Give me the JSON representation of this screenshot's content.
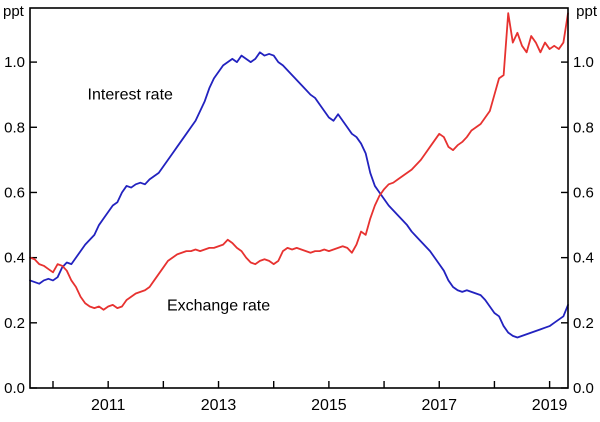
{
  "chart_data": {
    "type": "line",
    "title": "",
    "unit_label_left": "ppt",
    "unit_label_right": "ppt",
    "grid": false,
    "frame": true,
    "axis_color": "#000000",
    "background": "#ffffff",
    "x_range": [
      2009.5833,
      2019.3333
    ],
    "y_range": [
      0,
      1.166
    ],
    "x_start": 2009.5833,
    "x_step": 0.0833333,
    "y_ticks": [
      {
        "value": 0.0,
        "label": "0.0"
      },
      {
        "value": 0.2,
        "label": "0.2"
      },
      {
        "value": 0.4,
        "label": "0.4"
      },
      {
        "value": 0.6,
        "label": "0.6"
      },
      {
        "value": 0.8,
        "label": "0.8"
      },
      {
        "value": 1.0,
        "label": "1.0"
      }
    ],
    "x_minor_ticks": [
      2010,
      2011,
      2012,
      2013,
      2014,
      2015,
      2016,
      2017,
      2018,
      2019
    ],
    "x_tick_labels": [
      {
        "value": 2011,
        "label": "2011"
      },
      {
        "value": 2013,
        "label": "2013"
      },
      {
        "value": 2015,
        "label": "2015"
      },
      {
        "value": 2017,
        "label": "2017"
      },
      {
        "value": 2019,
        "label": "2019"
      }
    ],
    "series": [
      {
        "name": "Interest rate",
        "color": "#2222bf",
        "values": [
          0.33,
          0.325,
          0.32,
          0.33,
          0.335,
          0.33,
          0.34,
          0.37,
          0.385,
          0.38,
          0.4,
          0.42,
          0.44,
          0.455,
          0.47,
          0.5,
          0.52,
          0.54,
          0.56,
          0.57,
          0.6,
          0.62,
          0.615,
          0.625,
          0.63,
          0.625,
          0.64,
          0.65,
          0.66,
          0.68,
          0.7,
          0.72,
          0.74,
          0.76,
          0.78,
          0.8,
          0.82,
          0.85,
          0.88,
          0.92,
          0.95,
          0.97,
          0.99,
          1.0,
          1.01,
          1.0,
          1.02,
          1.01,
          1.0,
          1.01,
          1.03,
          1.02,
          1.025,
          1.02,
          1.0,
          0.99,
          0.975,
          0.96,
          0.945,
          0.93,
          0.915,
          0.9,
          0.89,
          0.87,
          0.85,
          0.83,
          0.82,
          0.84,
          0.82,
          0.8,
          0.78,
          0.77,
          0.75,
          0.72,
          0.66,
          0.62,
          0.6,
          0.58,
          0.56,
          0.545,
          0.53,
          0.515,
          0.5,
          0.48,
          0.465,
          0.45,
          0.435,
          0.42,
          0.4,
          0.38,
          0.36,
          0.33,
          0.31,
          0.3,
          0.295,
          0.3,
          0.295,
          0.29,
          0.285,
          0.27,
          0.25,
          0.23,
          0.22,
          0.19,
          0.17,
          0.16,
          0.155,
          0.16,
          0.165,
          0.17,
          0.175,
          0.18,
          0.185,
          0.19,
          0.2,
          0.21,
          0.22,
          0.255
        ]
      },
      {
        "name": "Exchange rate",
        "color": "#e73230",
        "values": [
          0.4,
          0.395,
          0.38,
          0.375,
          0.365,
          0.355,
          0.38,
          0.375,
          0.36,
          0.33,
          0.31,
          0.28,
          0.26,
          0.25,
          0.245,
          0.25,
          0.24,
          0.25,
          0.255,
          0.245,
          0.25,
          0.27,
          0.28,
          0.29,
          0.295,
          0.3,
          0.31,
          0.33,
          0.35,
          0.37,
          0.39,
          0.4,
          0.41,
          0.415,
          0.42,
          0.42,
          0.425,
          0.42,
          0.425,
          0.43,
          0.43,
          0.435,
          0.44,
          0.455,
          0.445,
          0.43,
          0.42,
          0.4,
          0.385,
          0.38,
          0.39,
          0.395,
          0.39,
          0.38,
          0.39,
          0.42,
          0.43,
          0.425,
          0.43,
          0.425,
          0.42,
          0.415,
          0.42,
          0.42,
          0.425,
          0.42,
          0.425,
          0.43,
          0.435,
          0.43,
          0.415,
          0.44,
          0.48,
          0.47,
          0.52,
          0.56,
          0.59,
          0.61,
          0.625,
          0.63,
          0.64,
          0.65,
          0.66,
          0.67,
          0.685,
          0.7,
          0.72,
          0.74,
          0.76,
          0.78,
          0.77,
          0.74,
          0.73,
          0.745,
          0.755,
          0.77,
          0.79,
          0.8,
          0.81,
          0.83,
          0.85,
          0.9,
          0.95,
          0.96,
          1.15,
          1.06,
          1.09,
          1.05,
          1.03,
          1.08,
          1.06,
          1.03,
          1.06,
          1.04,
          1.05,
          1.04,
          1.06,
          1.15
        ]
      }
    ],
    "annotations": [
      {
        "text": "Interest rate",
        "x": 2011.4,
        "y": 0.9,
        "color": "#2222bf"
      },
      {
        "text": "Exchange rate",
        "x": 2013.0,
        "y": 0.253,
        "color": "#e73230"
      }
    ]
  }
}
